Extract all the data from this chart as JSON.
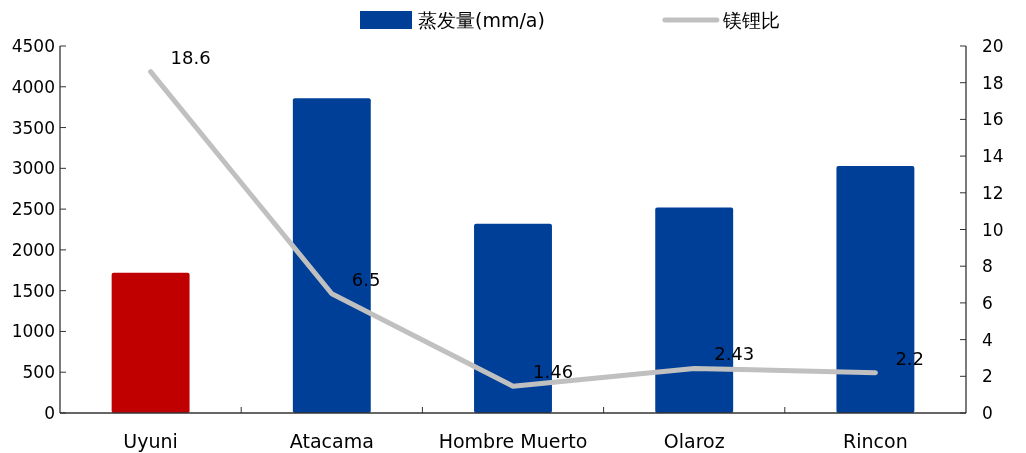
{
  "chart_data": {
    "type": "bar",
    "categories": [
      "Uyuni",
      "Atacama",
      "Hombre Muerto",
      "Olaroz",
      "Rincon"
    ],
    "series": [
      {
        "name": "蒸发量(mm/a)",
        "color": "#003f98",
        "colors": [
          "#c00000",
          "#003f98",
          "#003f98",
          "#003f98",
          "#003f98"
        ],
        "values": [
          1720,
          3860,
          2320,
          2520,
          3030
        ]
      },
      {
        "name": "镁锂比",
        "type": "line",
        "axis": "y2",
        "color": "#c0c0c0",
        "values": [
          18.6,
          6.5,
          1.46,
          2.43,
          2.2
        ],
        "value_labels": [
          "18.6",
          "6.5",
          "1.46",
          "2.43",
          "2.2"
        ]
      }
    ],
    "ylim": [
      0,
      4500
    ],
    "yticks": [
      0,
      500,
      1000,
      1500,
      2000,
      2500,
      3000,
      3500,
      4000,
      4500
    ],
    "y2lim": [
      0,
      20
    ],
    "y2ticks": [
      0,
      2,
      4,
      6,
      8,
      10,
      12,
      14,
      16,
      18,
      20
    ],
    "legend": "top",
    "grid": false,
    "marker": "none",
    "line_style": "solid"
  }
}
